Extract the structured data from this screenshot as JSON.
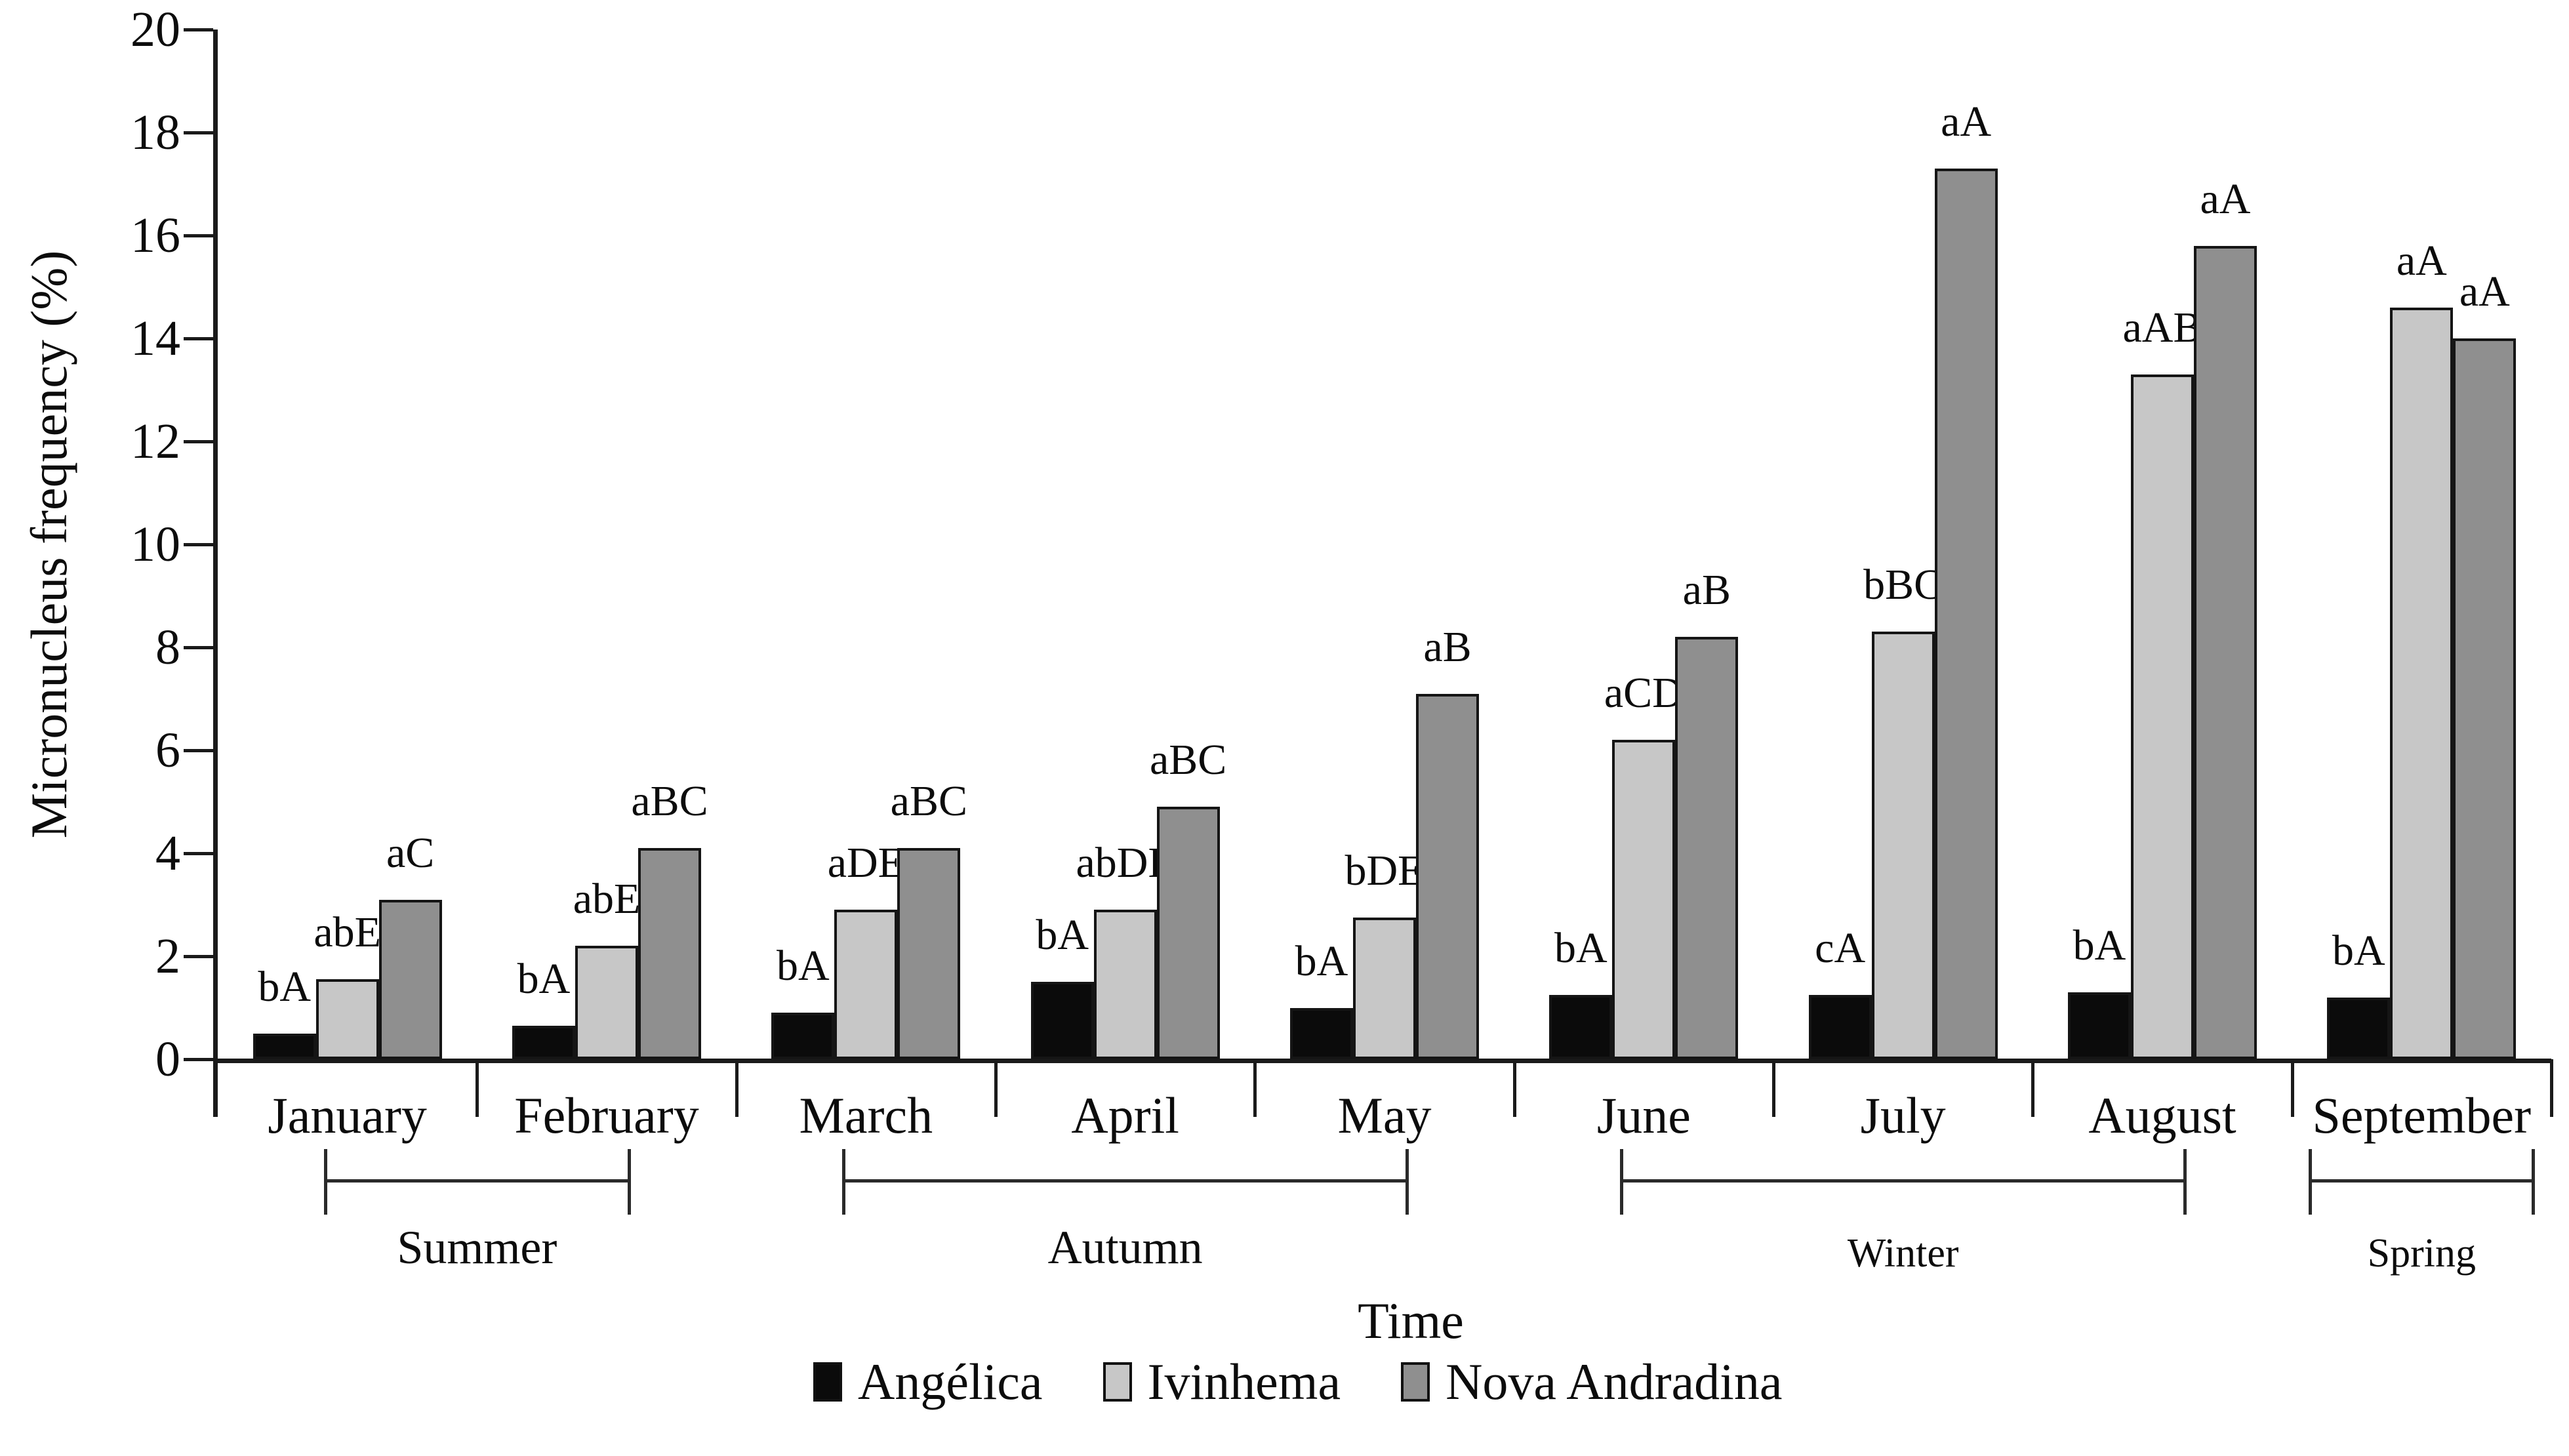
{
  "figure": {
    "y_axis_title": "Micronucleus frequency (%)",
    "x_axis_title": "Time"
  },
  "chart_data": {
    "type": "bar",
    "title": "",
    "xlabel": "Time",
    "ylabel": "Micronucleus frequency (%)",
    "ylim": [
      0,
      20
    ],
    "ytick_step": 2,
    "grid": false,
    "legend_position": "bottom",
    "categories": [
      "January",
      "February",
      "March",
      "April",
      "May",
      "June",
      "July",
      "August",
      "September"
    ],
    "series": [
      {
        "name": "Angélica",
        "color": "#0b0b0b",
        "values": [
          0.5,
          0.65,
          0.9,
          1.5,
          1.0,
          1.25,
          1.25,
          1.3,
          1.2
        ],
        "sig_labels": [
          "bA",
          "bA",
          "bA",
          "bA",
          "bA",
          "bA",
          "cA",
          "bA",
          "bA"
        ]
      },
      {
        "name": "Ivinhema",
        "color": "#c7c7c7",
        "values": [
          1.55,
          2.2,
          2.9,
          2.9,
          2.75,
          6.2,
          8.3,
          13.3,
          14.6
        ],
        "sig_labels": [
          "abE",
          "abE",
          "aDE",
          "abDE",
          "bDE",
          "aCD",
          "bBC",
          "aAB",
          "aA"
        ]
      },
      {
        "name": "Nova Andradina",
        "color": "#8f8f8f",
        "values": [
          3.1,
          4.1,
          4.1,
          4.9,
          7.1,
          8.2,
          17.3,
          15.8,
          14.0
        ],
        "sig_labels": [
          "aC",
          "aBC",
          "aBC",
          "aBC",
          "aB",
          "aB",
          "aA",
          "aA",
          "aA"
        ]
      }
    ],
    "season_groups": [
      {
        "label": "Summer",
        "from": 0,
        "to": 1,
        "small": false
      },
      {
        "label": "Autumn",
        "from": 2,
        "to": 4,
        "small": false
      },
      {
        "label": "Winter",
        "from": 5,
        "to": 7,
        "small": true
      },
      {
        "label": "Spring",
        "from": 8,
        "to": 8,
        "small": true
      }
    ],
    "axis_color": "#1a1a1a"
  }
}
